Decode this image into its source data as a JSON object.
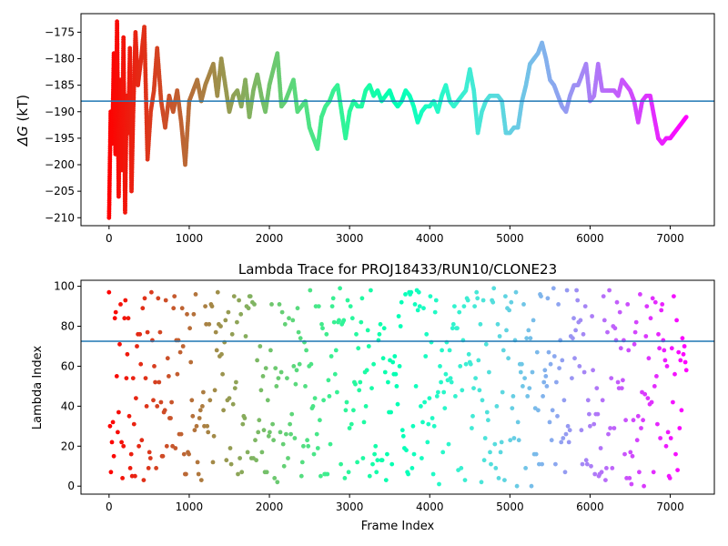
{
  "chart_data": [
    {
      "type": "scatter",
      "title": "",
      "xlabel": "",
      "ylabel": "ΔG (kT)",
      "ylabel_parts": {
        "symbol": "ΔG",
        "unit": " (kT)"
      },
      "xlim": [
        -350,
        7550
      ],
      "ylim": [
        -211.5,
        -171.5
      ],
      "x_ticks": [
        0,
        1000,
        2000,
        3000,
        4000,
        5000,
        6000,
        7000
      ],
      "x_tick_labels": [
        "0",
        "1000",
        "2000",
        "3000",
        "4000",
        "5000",
        "6000",
        "7000"
      ],
      "y_ticks": [
        -175,
        -180,
        -185,
        -190,
        -195,
        -200,
        -205,
        -210
      ],
      "y_tick_labels": [
        "−175",
        "−180",
        "−185",
        "−190",
        "−195",
        "−200",
        "−205",
        "−210"
      ],
      "hline": -188.0,
      "hline_color": "#1f77b4",
      "colormap": "rainbow (early frames red → late frames violet)",
      "x_max_frame": 7200,
      "series": [
        {
          "points": [
            [
              0,
              -210
            ],
            [
              20,
              -190
            ],
            [
              40,
              -196
            ],
            [
              60,
              -179
            ],
            [
              80,
              -198
            ],
            [
              100,
              -173
            ],
            [
              120,
              -206
            ],
            [
              140,
              -184
            ],
            [
              160,
              -201
            ],
            [
              180,
              -176
            ],
            [
              200,
              -209
            ],
            [
              220,
              -187
            ],
            [
              240,
              -194
            ],
            [
              260,
              -178
            ],
            [
              280,
              -205
            ],
            [
              300,
              -191
            ],
            [
              330,
              -175
            ],
            [
              360,
              -185
            ],
            [
              400,
              -180
            ],
            [
              440,
              -174
            ],
            [
              480,
              -199
            ],
            [
              520,
              -190
            ],
            [
              560,
              -186
            ],
            [
              600,
              -178
            ],
            [
              650,
              -188
            ],
            [
              700,
              -193
            ],
            [
              750,
              -187
            ],
            [
              800,
              -190
            ],
            [
              850,
              -186
            ],
            [
              900,
              -192
            ],
            [
              950,
              -200
            ],
            [
              1000,
              -188
            ],
            [
              1050,
              -186
            ],
            [
              1100,
              -184
            ],
            [
              1150,
              -188
            ],
            [
              1200,
              -185
            ],
            [
              1250,
              -183
            ],
            [
              1300,
              -181
            ],
            [
              1350,
              -187
            ],
            [
              1400,
              -180
            ],
            [
              1500,
              -190
            ],
            [
              1550,
              -187
            ],
            [
              1600,
              -186
            ],
            [
              1650,
              -189
            ],
            [
              1700,
              -184
            ],
            [
              1750,
              -191
            ],
            [
              1800,
              -186
            ],
            [
              1850,
              -183
            ],
            [
              1900,
              -187
            ],
            [
              1950,
              -190
            ],
            [
              2000,
              -185
            ],
            [
              2050,
              -182
            ],
            [
              2100,
              -179
            ],
            [
              2150,
              -189
            ],
            [
              2200,
              -188
            ],
            [
              2250,
              -186
            ],
            [
              2300,
              -184
            ],
            [
              2350,
              -190
            ],
            [
              2400,
              -189
            ],
            [
              2450,
              -188
            ],
            [
              2500,
              -193
            ],
            [
              2550,
              -195
            ],
            [
              2600,
              -197
            ],
            [
              2650,
              -191
            ],
            [
              2700,
              -189
            ],
            [
              2750,
              -188
            ],
            [
              2800,
              -186
            ],
            [
              2850,
              -185
            ],
            [
              2900,
              -190
            ],
            [
              2950,
              -195
            ],
            [
              3000,
              -190
            ],
            [
              3050,
              -188
            ],
            [
              3100,
              -189
            ],
            [
              3150,
              -189
            ],
            [
              3200,
              -186
            ],
            [
              3250,
              -185
            ],
            [
              3300,
              -187
            ],
            [
              3350,
              -186
            ],
            [
              3400,
              -188
            ],
            [
              3450,
              -187
            ],
            [
              3500,
              -186
            ],
            [
              3550,
              -188
            ],
            [
              3600,
              -189
            ],
            [
              3650,
              -188
            ],
            [
              3700,
              -186
            ],
            [
              3750,
              -187
            ],
            [
              3800,
              -189
            ],
            [
              3850,
              -192
            ],
            [
              3900,
              -190
            ],
            [
              3950,
              -189
            ],
            [
              4000,
              -189
            ],
            [
              4050,
              -188
            ],
            [
              4100,
              -190
            ],
            [
              4150,
              -187
            ],
            [
              4200,
              -185
            ],
            [
              4250,
              -188
            ],
            [
              4300,
              -189
            ],
            [
              4350,
              -188
            ],
            [
              4400,
              -187
            ],
            [
              4450,
              -186
            ],
            [
              4500,
              -182
            ],
            [
              4550,
              -186
            ],
            [
              4600,
              -194
            ],
            [
              4650,
              -190
            ],
            [
              4700,
              -188
            ],
            [
              4750,
              -187
            ],
            [
              4800,
              -187
            ],
            [
              4850,
              -187
            ],
            [
              4900,
              -188
            ],
            [
              4950,
              -194
            ],
            [
              5000,
              -194
            ],
            [
              5050,
              -193
            ],
            [
              5100,
              -193
            ],
            [
              5150,
              -188
            ],
            [
              5200,
              -185
            ],
            [
              5250,
              -181
            ],
            [
              5300,
              -180
            ],
            [
              5350,
              -179
            ],
            [
              5400,
              -177
            ],
            [
              5450,
              -180
            ],
            [
              5500,
              -184
            ],
            [
              5550,
              -185
            ],
            [
              5600,
              -187
            ],
            [
              5650,
              -189
            ],
            [
              5700,
              -190
            ],
            [
              5750,
              -187
            ],
            [
              5800,
              -185
            ],
            [
              5850,
              -185
            ],
            [
              5900,
              -183
            ],
            [
              5950,
              -181
            ],
            [
              6000,
              -188
            ],
            [
              6050,
              -187
            ],
            [
              6100,
              -181
            ],
            [
              6150,
              -186
            ],
            [
              6200,
              -186
            ],
            [
              6250,
              -186
            ],
            [
              6300,
              -186
            ],
            [
              6350,
              -187
            ],
            [
              6400,
              -184
            ],
            [
              6450,
              -185
            ],
            [
              6500,
              -186
            ],
            [
              6550,
              -188
            ],
            [
              6600,
              -192
            ],
            [
              6650,
              -188
            ],
            [
              6700,
              -187
            ],
            [
              6750,
              -187
            ],
            [
              6800,
              -191
            ],
            [
              6850,
              -195
            ],
            [
              6900,
              -196
            ],
            [
              6950,
              -195
            ],
            [
              7000,
              -195
            ],
            [
              7050,
              -194
            ],
            [
              7100,
              -193
            ],
            [
              7150,
              -192
            ],
            [
              7200,
              -191
            ]
          ]
        }
      ]
    },
    {
      "type": "scatter",
      "title": "Lambda Trace for PROJ18433/RUN10/CLONE23",
      "xlabel": "Frame Index",
      "ylabel": "Lambda Index",
      "xlim": [
        -350,
        7550
      ],
      "ylim": [
        -4,
        103
      ],
      "x_ticks": [
        0,
        1000,
        2000,
        3000,
        4000,
        5000,
        6000,
        7000
      ],
      "x_tick_labels": [
        "0",
        "1000",
        "2000",
        "3000",
        "4000",
        "5000",
        "6000",
        "7000"
      ],
      "y_ticks": [
        0,
        20,
        40,
        60,
        80,
        100
      ],
      "y_tick_labels": [
        "0",
        "20",
        "40",
        "60",
        "80",
        "100"
      ],
      "hline": 72.5,
      "hline_color": "#1f77b4",
      "colormap": "rainbow (early frames red → late frames violet)",
      "x_max_frame": 7200,
      "value_range": [
        0,
        99
      ],
      "sample_stride": 12
    }
  ]
}
